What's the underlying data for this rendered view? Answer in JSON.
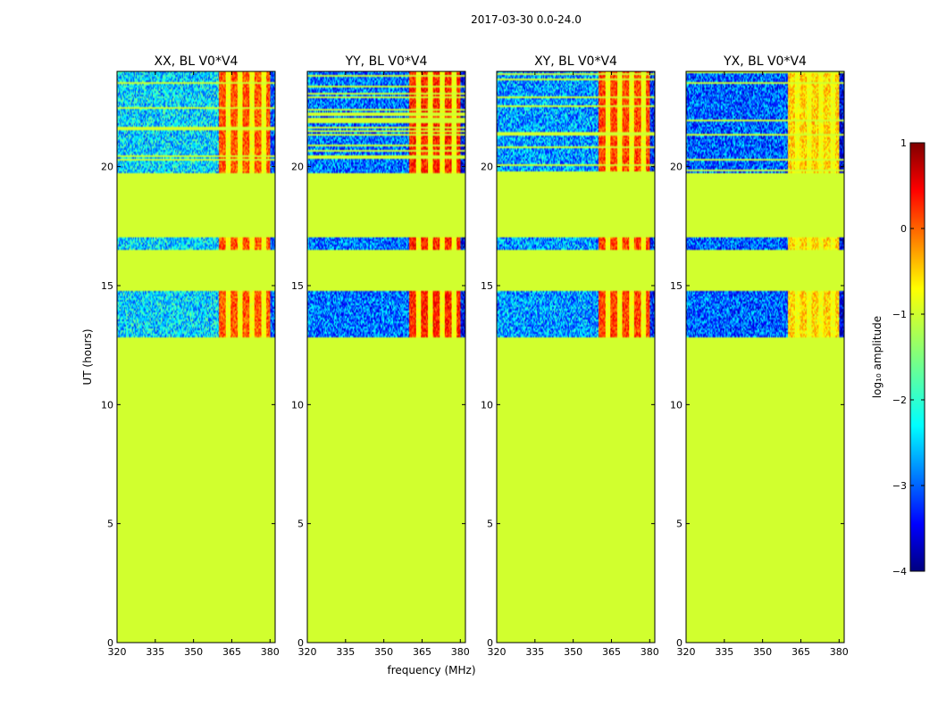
{
  "figure_title": "2017-03-30 0.0-24.0",
  "chart_data": {
    "type": "heatmap",
    "title": "2017-03-30 0.0-24.0",
    "xlabel": "frequency (MHz)",
    "ylabel": "UT (hours)",
    "xlim": [
      320,
      382
    ],
    "ylim": [
      0,
      24
    ],
    "x_ticks": [
      320,
      335,
      350,
      365,
      380
    ],
    "y_ticks": [
      0,
      5,
      10,
      15,
      20
    ],
    "panels": [
      {
        "title": "XX, BL V0*V4",
        "rfi_amplitude": 0.0,
        "background": -2.3
      },
      {
        "title": "YY, BL V0*V4",
        "rfi_amplitude": 0.25,
        "background": -2.8
      },
      {
        "title": "XY, BL V0*V4",
        "rfi_amplitude": 0.1,
        "background": -2.6
      },
      {
        "title": "YX, BL V0*V4",
        "rfi_amplitude": -0.6,
        "background": -2.9
      }
    ],
    "flagged_value": -1.1,
    "observed_ranges_hours": [
      [
        12.85,
        14.8
      ],
      [
        16.5,
        17.0
      ],
      [
        19.75,
        24.0
      ]
    ],
    "rfi_band_mhz": [
      360,
      380
    ],
    "colorbar": {
      "label": "log₁₀ amplitude",
      "min": -4,
      "max": 1,
      "ticks": [
        -4,
        -3,
        -2,
        -1,
        0,
        1
      ],
      "tick_labels": [
        "−4",
        "−3",
        "−2",
        "−1",
        "0",
        "1"
      ]
    }
  }
}
